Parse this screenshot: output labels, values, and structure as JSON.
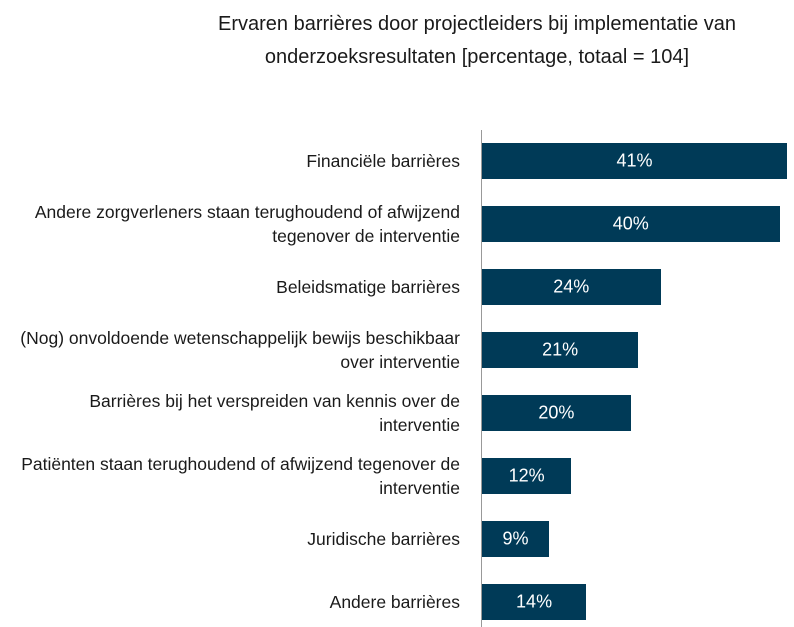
{
  "chart_data": {
    "type": "barh",
    "title": "Ervaren barrières door projectleiders bij implementatie van onderzoeksresultaten [percentage, totaal = 104]",
    "categories": [
      "Financiële barrières",
      "Andere zorgverleners staan terughoudend of afwijzend tegenover de interventie",
      "Beleidsmatige barrières",
      "(Nog) onvoldoende wetenschappelijk bewijs beschikbaar over interventie",
      "Barrières bij het verspreiden van kennis over de interventie",
      "Patiënten staan terughoudend of afwijzend tegenover de interventie",
      "Juridische barrières",
      "Andere barrières"
    ],
    "values": [
      41,
      40,
      24,
      21,
      20,
      12,
      9,
      14
    ],
    "value_labels": [
      "41%",
      "40%",
      "24%",
      "21%",
      "20%",
      "12%",
      "9%",
      "14%"
    ],
    "color": "#003a57"
  }
}
